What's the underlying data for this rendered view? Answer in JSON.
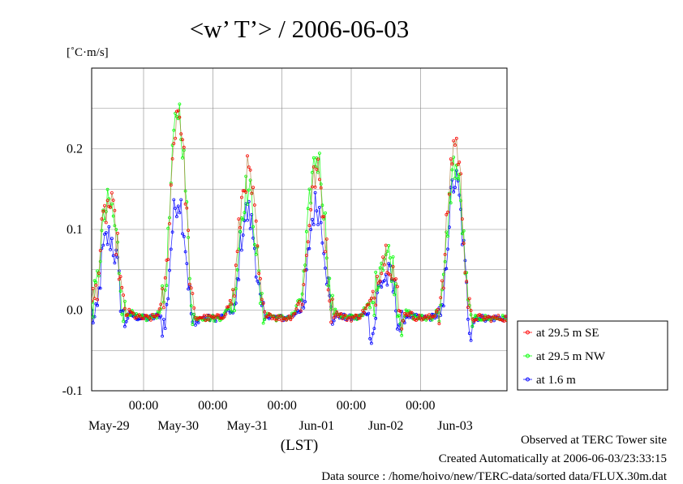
{
  "chart_data": {
    "type": "line",
    "title": "<w’ T’> / 2006-06-03",
    "ylabel": "[˚C·m/s]",
    "xlabel": "(LST)",
    "ylim": [
      -0.1,
      0.3
    ],
    "yticks": [
      -0.1,
      0.0,
      0.1,
      0.2
    ],
    "ytick_labels": [
      "-0.1",
      "0.0",
      "0.1",
      "0.2"
    ],
    "xlim": [
      0,
      144
    ],
    "x_unit": "hours since May-28 06:00 LST",
    "time_labels": [
      {
        "x": 18,
        "label": "00:00"
      },
      {
        "x": 42,
        "label": "00:00"
      },
      {
        "x": 66,
        "label": "00:00"
      },
      {
        "x": 90,
        "label": "00:00"
      },
      {
        "x": 114,
        "label": "00:00"
      }
    ],
    "day_labels": [
      {
        "x": 6,
        "label": "May-29"
      },
      {
        "x": 30,
        "label": "May-30"
      },
      {
        "x": 54,
        "label": "May-31"
      },
      {
        "x": 78,
        "label": "Jun-01"
      },
      {
        "x": 102,
        "label": "Jun-02"
      },
      {
        "x": 126,
        "label": "Jun-03"
      }
    ],
    "grid": true,
    "legend_position": "right",
    "series": [
      {
        "name": "at 29.5 m SE",
        "color": "#ff0000"
      },
      {
        "name": "at 29.5 m NW",
        "color": "#00ff00"
      },
      {
        "name": "at 1.6 m",
        "color": "#0000ff"
      }
    ],
    "daily_peaks": [
      {
        "day": "May-29",
        "center_hour": 12,
        "width_h": 3.2,
        "SE": 0.14,
        "NW": 0.14,
        "surface": 0.1
      },
      {
        "day": "May-30",
        "center_hour": 12,
        "width_h": 2.6,
        "SE": 0.26,
        "NW": 0.26,
        "surface": 0.15
      },
      {
        "day": "May-31",
        "center_hour": 12,
        "width_h": 3.0,
        "SE": 0.18,
        "NW": 0.16,
        "surface": 0.13
      },
      {
        "day": "Jun-01",
        "center_hour": 12,
        "width_h": 3.0,
        "SE": 0.18,
        "NW": 0.2,
        "surface": 0.14
      },
      {
        "day": "Jun-02",
        "center_hour": 12,
        "width_h": 3.6,
        "SE": 0.08,
        "NW": 0.08,
        "surface": 0.05
      },
      {
        "day": "Jun-03",
        "center_hour": 12,
        "width_h": 2.6,
        "SE": 0.22,
        "NW": 0.19,
        "surface": 0.17
      }
    ],
    "night_value": -0.01,
    "morning_dip": -0.035,
    "evening_dip": -0.03
  },
  "footer": {
    "site": "Observed at TERC Tower site",
    "created": "Created Automatically at 2006-06-03/23:33:15",
    "source": "Data source : /home/hoivo/new/TERC-data/sorted  data/FLUX.30m.dat"
  }
}
